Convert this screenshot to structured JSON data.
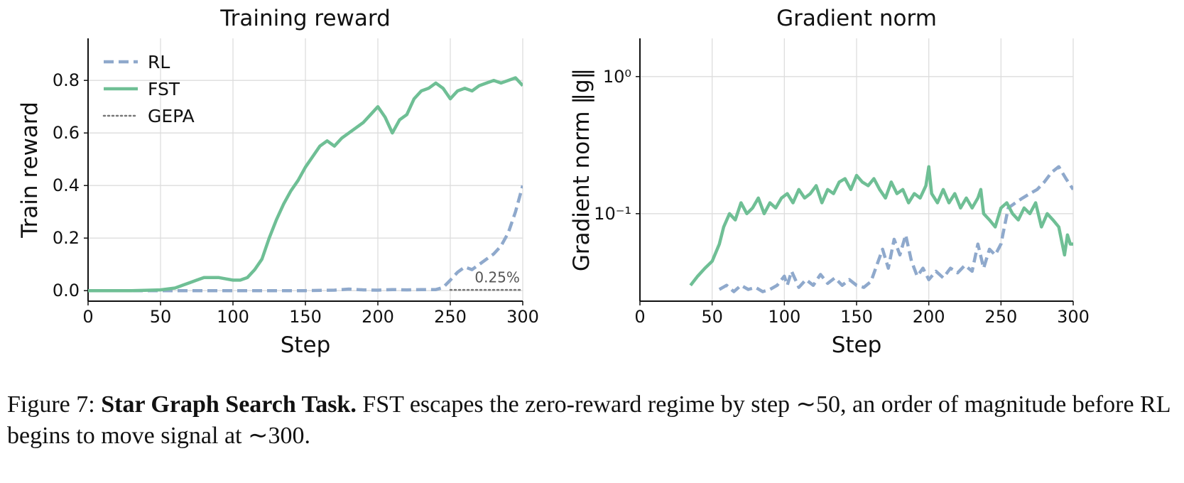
{
  "chart_data": [
    {
      "type": "line",
      "title": "Training reward",
      "xlabel": "Step",
      "ylabel": "Train reward",
      "xlim": [
        0,
        300
      ],
      "ylim": [
        -0.04,
        0.96
      ],
      "xticks": [
        0,
        50,
        100,
        150,
        200,
        250,
        300
      ],
      "xtick_labels": [
        "0",
        "50",
        "100",
        "150",
        "200",
        "250",
        "300"
      ],
      "yticks": [
        0.0,
        0.2,
        0.4,
        0.6,
        0.8
      ],
      "ytick_labels": [
        "0.0",
        "0.2",
        "0.4",
        "0.6",
        "0.8"
      ],
      "grid": true,
      "legend": "top-left",
      "annotation": {
        "text": "0.25%",
        "x": 298,
        "y": 0.015
      },
      "series": [
        {
          "name": "RL",
          "style": "dashed",
          "color": "#8fa9cc",
          "x": [
            0,
            50,
            100,
            150,
            170,
            180,
            190,
            200,
            210,
            220,
            230,
            240,
            245,
            250,
            255,
            260,
            265,
            270,
            275,
            280,
            285,
            290,
            295,
            300
          ],
          "y": [
            0.0,
            0.0,
            0.0,
            0.0,
            0.002,
            0.006,
            0.003,
            0.002,
            0.004,
            0.003,
            0.004,
            0.004,
            0.012,
            0.04,
            0.07,
            0.09,
            0.08,
            0.1,
            0.12,
            0.14,
            0.17,
            0.22,
            0.3,
            0.4
          ]
        },
        {
          "name": "FST",
          "style": "solid",
          "color": "#6fbf95",
          "x": [
            0,
            30,
            50,
            60,
            65,
            70,
            75,
            80,
            85,
            90,
            95,
            100,
            105,
            110,
            115,
            120,
            125,
            130,
            135,
            140,
            145,
            150,
            155,
            160,
            165,
            170,
            175,
            180,
            185,
            190,
            195,
            200,
            205,
            210,
            215,
            220,
            225,
            230,
            235,
            240,
            245,
            250,
            255,
            260,
            265,
            270,
            275,
            280,
            285,
            290,
            295,
            300
          ],
          "y": [
            0.0,
            0.0,
            0.003,
            0.01,
            0.02,
            0.03,
            0.04,
            0.05,
            0.05,
            0.05,
            0.045,
            0.04,
            0.04,
            0.05,
            0.08,
            0.12,
            0.2,
            0.27,
            0.33,
            0.38,
            0.42,
            0.47,
            0.51,
            0.55,
            0.57,
            0.55,
            0.58,
            0.6,
            0.62,
            0.64,
            0.67,
            0.7,
            0.66,
            0.6,
            0.65,
            0.67,
            0.73,
            0.76,
            0.77,
            0.79,
            0.77,
            0.73,
            0.76,
            0.77,
            0.76,
            0.78,
            0.79,
            0.8,
            0.79,
            0.8,
            0.81,
            0.78
          ]
        },
        {
          "name": "GEPA",
          "style": "dotted",
          "color": "#777777",
          "x": [
            250,
            300
          ],
          "y": [
            0.003,
            0.003
          ]
        }
      ]
    },
    {
      "type": "line",
      "title": "Gradient norm",
      "xlabel": "Step",
      "ylabel": "Gradient norm ‖g‖",
      "xlim": [
        0,
        300
      ],
      "yscale": "log",
      "ylim": [
        0.023,
        1.9
      ],
      "xticks": [
        0,
        50,
        100,
        150,
        200,
        250,
        300
      ],
      "xtick_labels": [
        "0",
        "50",
        "100",
        "150",
        "200",
        "250",
        "300"
      ],
      "yticks": [
        0.1,
        1.0
      ],
      "ytick_labels": [
        "10⁻¹",
        "10⁰"
      ],
      "grid": true,
      "series": [
        {
          "name": "RL",
          "style": "dashed",
          "color": "#8fa9cc",
          "x": [
            55,
            60,
            65,
            70,
            75,
            80,
            85,
            90,
            95,
            100,
            102,
            105,
            110,
            115,
            120,
            125,
            130,
            135,
            140,
            145,
            150,
            155,
            160,
            165,
            168,
            172,
            176,
            180,
            184,
            188,
            192,
            196,
            200,
            205,
            210,
            215,
            220,
            225,
            230,
            234,
            238,
            242,
            246,
            250,
            255,
            260,
            265,
            270,
            275,
            280,
            285,
            290,
            295,
            300
          ],
          "y": [
            0.028,
            0.03,
            0.027,
            0.03,
            0.028,
            0.029,
            0.027,
            0.028,
            0.03,
            0.035,
            0.03,
            0.038,
            0.029,
            0.033,
            0.03,
            0.036,
            0.031,
            0.034,
            0.03,
            0.033,
            0.03,
            0.029,
            0.032,
            0.045,
            0.055,
            0.04,
            0.065,
            0.05,
            0.07,
            0.045,
            0.035,
            0.04,
            0.033,
            0.038,
            0.034,
            0.04,
            0.037,
            0.042,
            0.038,
            0.06,
            0.04,
            0.055,
            0.05,
            0.06,
            0.11,
            0.12,
            0.13,
            0.14,
            0.15,
            0.17,
            0.2,
            0.22,
            0.18,
            0.15
          ]
        },
        {
          "name": "FST",
          "style": "solid",
          "color": "#6fbf95",
          "x": [
            35,
            40,
            45,
            50,
            55,
            58,
            62,
            66,
            70,
            74,
            78,
            82,
            86,
            90,
            94,
            98,
            102,
            106,
            110,
            114,
            118,
            122,
            126,
            130,
            134,
            138,
            142,
            146,
            150,
            154,
            158,
            162,
            166,
            170,
            174,
            178,
            182,
            186,
            190,
            194,
            198,
            200,
            202,
            206,
            210,
            214,
            218,
            222,
            226,
            230,
            234,
            236,
            238,
            242,
            246,
            250,
            254,
            258,
            262,
            266,
            270,
            274,
            278,
            282,
            286,
            290,
            294,
            296,
            298,
            300
          ],
          "y": [
            0.03,
            0.035,
            0.04,
            0.045,
            0.06,
            0.08,
            0.1,
            0.09,
            0.12,
            0.1,
            0.11,
            0.13,
            0.1,
            0.12,
            0.11,
            0.13,
            0.14,
            0.12,
            0.15,
            0.13,
            0.14,
            0.16,
            0.12,
            0.15,
            0.14,
            0.17,
            0.18,
            0.15,
            0.19,
            0.17,
            0.16,
            0.18,
            0.15,
            0.13,
            0.17,
            0.14,
            0.15,
            0.12,
            0.14,
            0.13,
            0.16,
            0.22,
            0.14,
            0.12,
            0.15,
            0.12,
            0.14,
            0.11,
            0.13,
            0.11,
            0.13,
            0.15,
            0.1,
            0.09,
            0.08,
            0.11,
            0.12,
            0.1,
            0.09,
            0.11,
            0.1,
            0.12,
            0.08,
            0.1,
            0.09,
            0.08,
            0.05,
            0.07,
            0.06,
            0.06
          ]
        }
      ]
    }
  ],
  "caption": {
    "prefix": "Figure 7: ",
    "bold": "Star Graph Search Task.",
    "text": " FST escapes the zero-reward regime by step ∼50, an order of magnitude before RL begins to move signal at ∼300."
  }
}
